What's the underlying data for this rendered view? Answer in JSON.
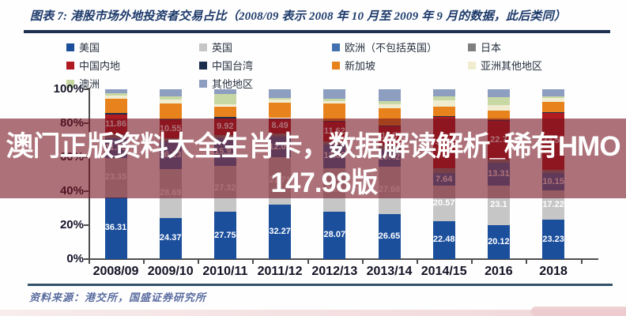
{
  "header": {
    "title": "图表 7: 港股市场外地投资者交易占比（2008/09 表示 2008 年 10 月至 2009 年 9 月的数据，此后类同）"
  },
  "overlay": {
    "line1": "澳门正版资料大全生肖卡，数据解读解析_稀有HMO",
    "line2": "147.98版",
    "bg_color": "#761420"
  },
  "footer": {
    "source": "资料来源：港交所，国盛证券研究所"
  },
  "chart_data": {
    "type": "bar",
    "stacked": true,
    "title": "港股市场外地投资者交易占比",
    "categories": [
      "2008/09",
      "2009/10",
      "2010/11",
      "2011/12",
      "2012/13",
      "2013/14",
      "2014/15",
      "2016",
      "2018"
    ],
    "yticks": [
      "0%",
      "20%",
      "40%",
      "60%",
      "80%",
      "100%"
    ],
    "ylim": [
      0,
      100
    ],
    "gridlines": false,
    "legend_position": "top",
    "series": [
      {
        "name": "美国",
        "color": "#1b4f9c",
        "values": [
          36.31,
          24.37,
          27.75,
          32.27,
          28.07,
          26.65,
          22.48,
          20.12,
          23.23
        ],
        "labels": [
          "36.31",
          "24.37",
          "27.75",
          "32.27",
          "28.07",
          "26.65",
          "22.48",
          "20.12",
          "23.23"
        ]
      },
      {
        "name": "英国",
        "color": "#c6c6c6",
        "values": [
          23.35,
          28.69,
          27.32,
          27.71,
          25.6,
          27.68,
          20.57,
          23.1,
          17.22
        ],
        "labels": [
          "23.35",
          "28.69",
          "27.32",
          "27.71",
          "25.6",
          "27.68",
          "20.57",
          "23.1",
          "17.22"
        ]
      },
      {
        "name": "欧洲（不包括英国）",
        "color": "#4170ae",
        "values": [
          11.53,
          16.13,
          15.91,
          12.05,
          13.62,
          10.42,
          7.64,
          13.31,
          10.15
        ],
        "labels": [
          "11.53",
          "16.13",
          "15.91",
          "12.05",
          "13.62",
          "10.42",
          "7.64",
          "13.31",
          "10.15"
        ]
      },
      {
        "name": "日本",
        "color": "#7f7f7f",
        "values": [
          2.2,
          2.2,
          2.0,
          2.0,
          2.0,
          2.0,
          2.8,
          2.0,
          2.0
        ],
        "labels": null
      },
      {
        "name": "中国内地",
        "color": "#b01b22",
        "values": [
          11.86,
          10.55,
          9.92,
          8.49,
          11.62,
          11.5,
          30.2,
          22.7,
          33.53
        ],
        "labels": [
          "11.86",
          "10.55",
          "9.92",
          "8.49",
          "11.62",
          "11.5",
          "30.2",
          "22.7",
          "33.53"
        ]
      },
      {
        "name": "中国台湾",
        "color": "#1c2e4d",
        "values": [
          0.6,
          0.6,
          0.6,
          0.5,
          0.5,
          0.5,
          0.5,
          0.5,
          0.5
        ],
        "labels": null
      },
      {
        "name": "新加坡",
        "color": "#e8821c",
        "values": [
          8.4,
          9.2,
          6.5,
          9.3,
          10.0,
          10.2,
          5.6,
          5.6,
          6.0
        ],
        "labels": null
      },
      {
        "name": "亚洲其他地区",
        "color": "#f0ecd0",
        "values": [
          1.9,
          2.2,
          1.2,
          1.5,
          1.5,
          2.0,
          3.7,
          3.3,
          2.3
        ],
        "labels": null
      },
      {
        "name": "澳洲",
        "color": "#c8d8a4",
        "values": [
          1.4,
          1.7,
          5.8,
          1.2,
          1.5,
          2.2,
          2.3,
          4.7,
          1.0
        ],
        "labels": null
      },
      {
        "name": "其他地区",
        "color": "#8e9ec0",
        "values": [
          2.5,
          4.2,
          3.0,
          5.0,
          5.6,
          6.8,
          4.2,
          4.7,
          4.1
        ],
        "labels": null
      }
    ]
  }
}
